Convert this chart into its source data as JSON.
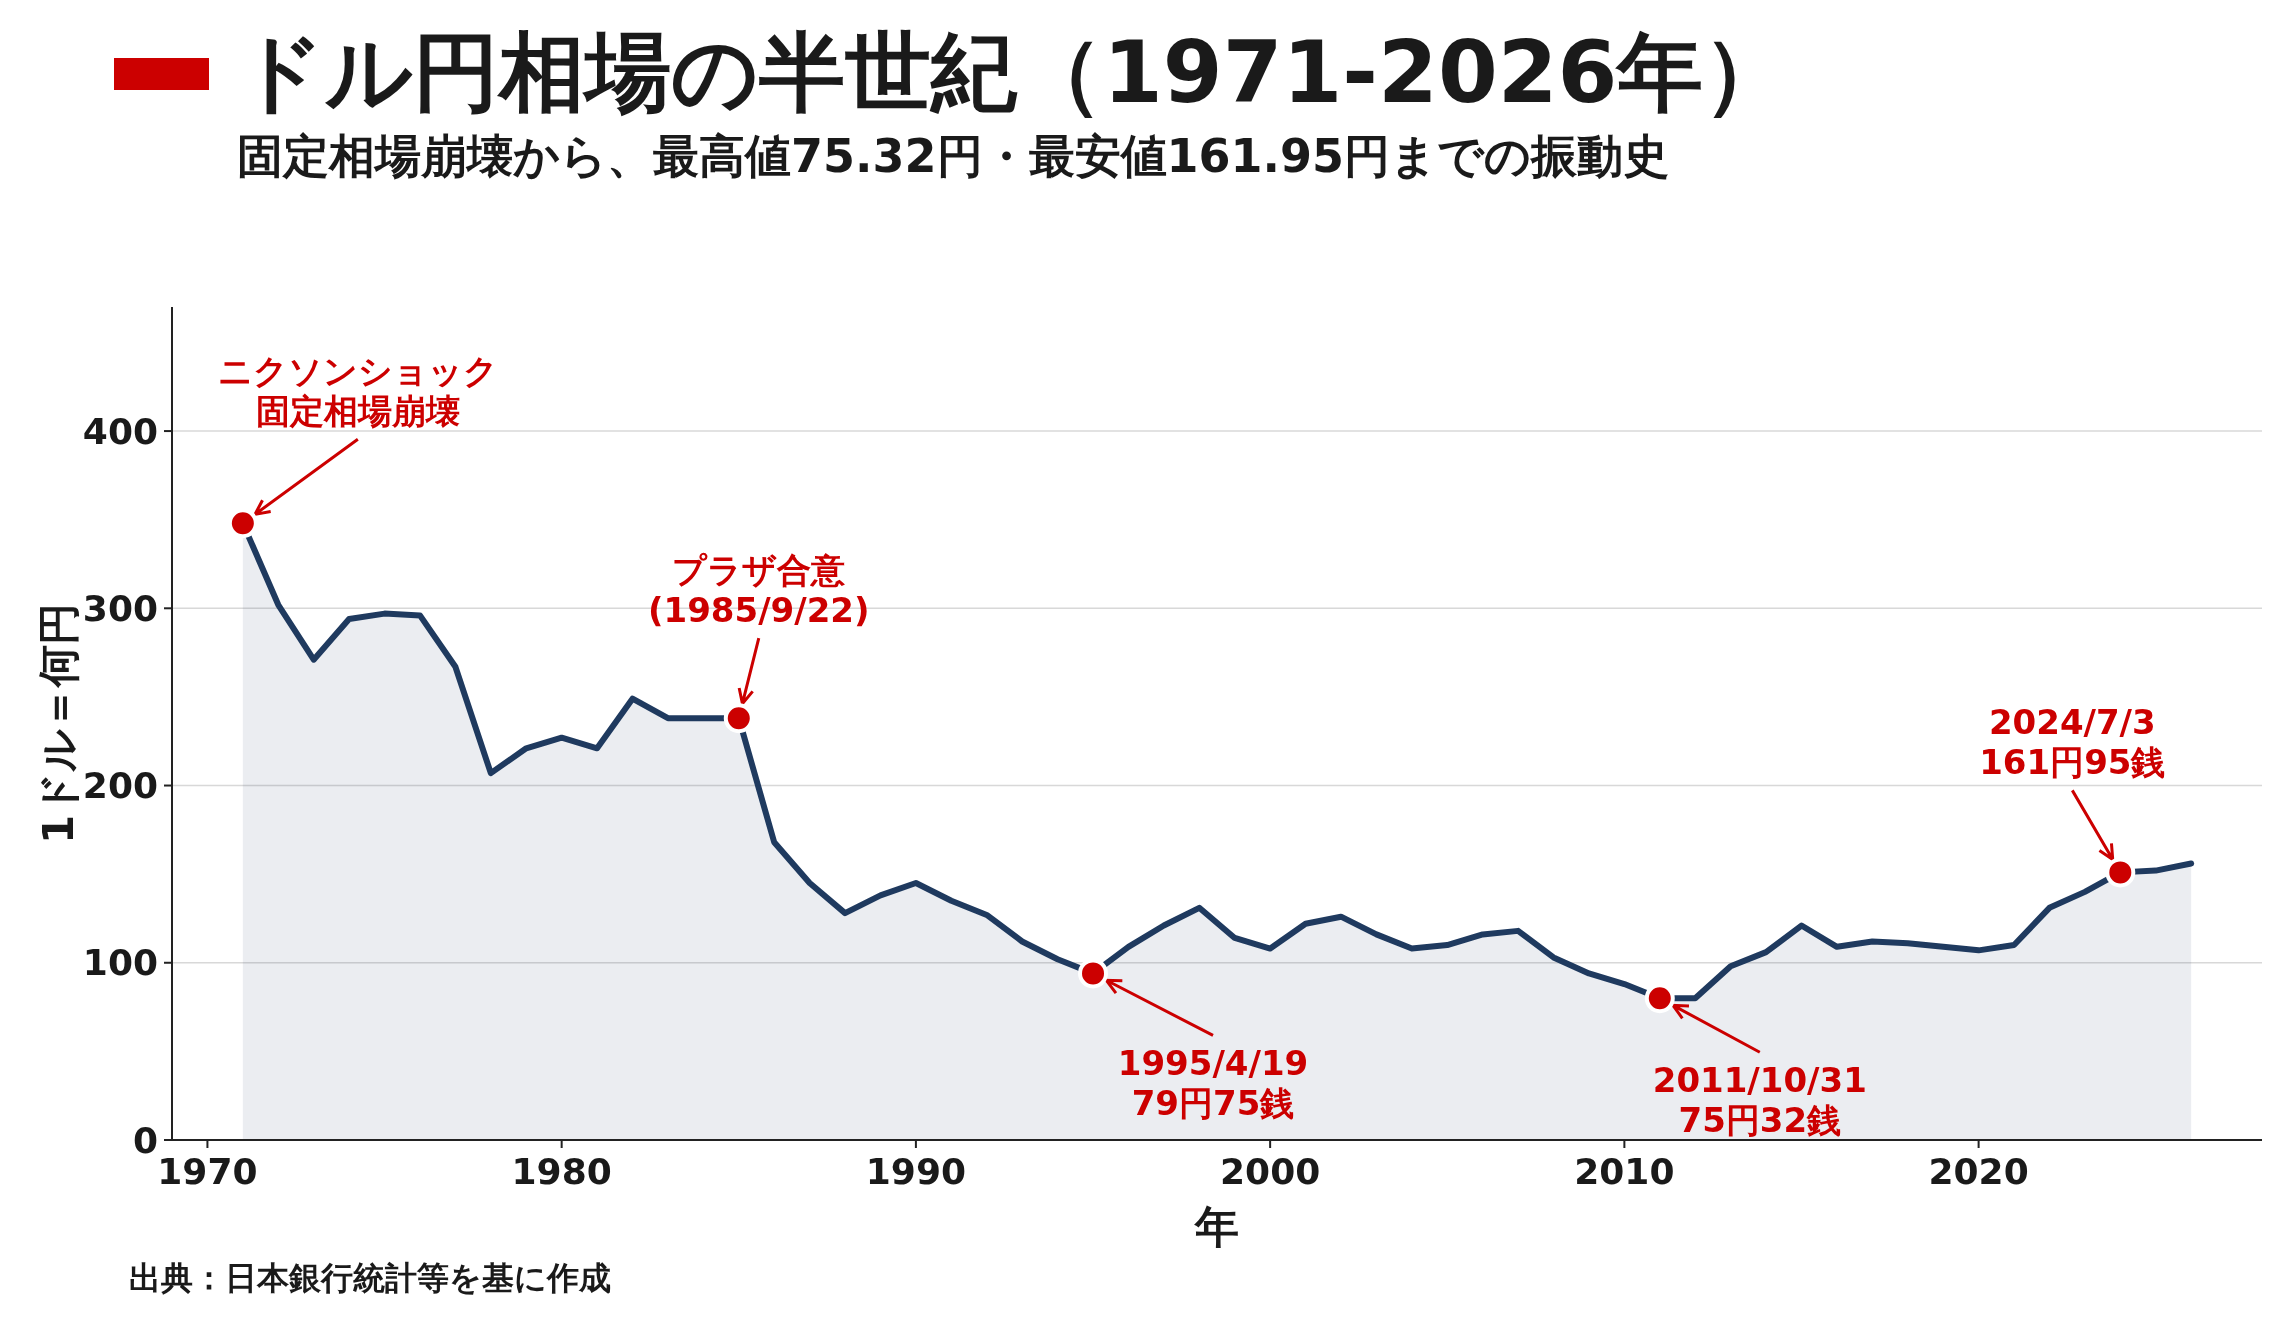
{
  "chart_data": {
    "type": "area",
    "title": "ドル円相場の半世紀（1971-2026年）",
    "subtitle": "固定相場崩壊から、最高値75.32円・最安値161.95円までの振動史",
    "xlabel": "年",
    "ylabel": "1ドル＝何円",
    "x": [
      1971,
      1972,
      1973,
      1974,
      1975,
      1976,
      1977,
      1978,
      1979,
      1980,
      1981,
      1982,
      1983,
      1984,
      1985,
      1986,
      1987,
      1988,
      1989,
      1990,
      1991,
      1992,
      1993,
      1994,
      1995,
      1996,
      1997,
      1998,
      1999,
      2000,
      2001,
      2002,
      2003,
      2004,
      2005,
      2006,
      2007,
      2008,
      2009,
      2010,
      2011,
      2012,
      2013,
      2014,
      2015,
      2016,
      2017,
      2018,
      2019,
      2020,
      2021,
      2022,
      2023,
      2024,
      2025,
      2026
    ],
    "series": [
      {
        "color": "#1f3a5f",
        "values": [
          348,
          302,
          271,
          294,
          297,
          296,
          267,
          207,
          221,
          227,
          221,
          249,
          238,
          238,
          238,
          168,
          145,
          128,
          138,
          145,
          135,
          127,
          112,
          102,
          94,
          109,
          121,
          131,
          114,
          108,
          122,
          126,
          116,
          108,
          110,
          116,
          118,
          103,
          94,
          88,
          80,
          80,
          98,
          106,
          121,
          109,
          112,
          111,
          109,
          107,
          110,
          131,
          140,
          151,
          152,
          156
        ]
      }
    ],
    "xlim": [
      1969,
      2028
    ],
    "xticks": [
      1970,
      1980,
      1990,
      2000,
      2010,
      2020
    ],
    "ylim": [
      0,
      470
    ],
    "yticks": [
      0,
      100,
      200,
      300,
      400
    ],
    "grid": "y",
    "annotations": [
      {
        "text": "ニクソンショック固定相場崩壊",
        "x": 1971,
        "y": 348
      },
      {
        "text": "プラザ合意\n(1985/9/22)",
        "x": 1985,
        "y": 238
      },
      {
        "text": "1995/4/19\n79円75銭",
        "x": 1995,
        "y": 94
      },
      {
        "text": "2011/10/31\n75円32銭",
        "x": 2011,
        "y": 80
      },
      {
        "text": "2024/7/3\n161円95銭",
        "x": 2024,
        "y": 151
      },
      "出典：日本銀行統計等を基に作成"
    ]
  }
}
